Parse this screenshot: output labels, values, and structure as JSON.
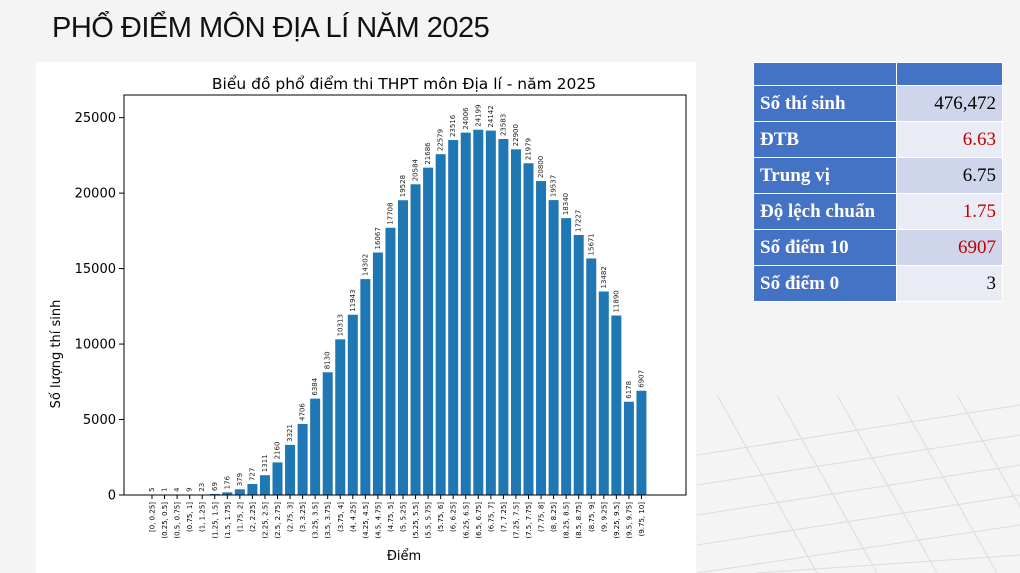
{
  "slide": {
    "title": "PHỔ ĐIỂM MÔN ĐỊA LÍ NĂM 2025"
  },
  "colors": {
    "bar": "#1f77b4",
    "table_header": "#4472c4",
    "highlight": "#c00000"
  },
  "chart_data": {
    "type": "bar",
    "title": "Biểu đồ phổ điểm thi THPT môn Địa lí - năm 2025",
    "xlabel": "Điểm",
    "ylabel": "Số lượng thí sinh",
    "ylim": [
      0,
      26500
    ],
    "yticks": [
      "0",
      "5000",
      "10000",
      "15000",
      "20000",
      "25000"
    ],
    "categories": [
      "[0, 0.25]",
      "(0.25, 0.5]",
      "(0.5, 0.75]",
      "(0.75, 1]",
      "(1, 1.25]",
      "(1.25, 1.5]",
      "(1.5, 1.75]",
      "(1.75, 2]",
      "(2, 2.25]",
      "(2.25, 2.5]",
      "(2.5, 2.75]",
      "(2.75, 3]",
      "(3, 3.25]",
      "(3.25, 3.5]",
      "(3.5, 3.75]",
      "(3.75, 4]",
      "(4, 4.25]",
      "(4.25, 4.5]",
      "(4.5, 4.75]",
      "(4.75, 5]",
      "(5, 5.25]",
      "(5.25, 5.5]",
      "(5.5, 5.75]",
      "(5.75, 6]",
      "(6, 6.25]",
      "(6.25, 6.5]",
      "(6.5, 6.75]",
      "(6.75, 7]",
      "(7, 7.25]",
      "(7.25, 7.5]",
      "(7.5, 7.75]",
      "(7.75, 8]",
      "(8, 8.25]",
      "(8.25, 8.5]",
      "(8.5, 8.75]",
      "(8.75, 9]",
      "(9, 9.25]",
      "(9.25, 9.5]",
      "(9.5, 9.75]",
      "(9.75, 10]"
    ],
    "values": [
      5,
      1,
      4,
      9,
      23,
      69,
      176,
      379,
      727,
      1311,
      2160,
      3321,
      4706,
      6384,
      8130,
      10313,
      11943,
      14302,
      16067,
      17708,
      19528,
      20584,
      21686,
      22579,
      23516,
      24006,
      24199,
      24142,
      23583,
      22900,
      21979,
      20800,
      19537,
      18340,
      17227,
      15671,
      13482,
      11890,
      6178,
      6907
    ],
    "grid": false,
    "legend": "none"
  },
  "stats_table": {
    "rows": [
      {
        "label": "Số thí sinh",
        "value": "476,472",
        "highlight": false
      },
      {
        "label": "ĐTB",
        "value": "6.63",
        "highlight": true
      },
      {
        "label": "Trung vị",
        "value": "6.75",
        "highlight": false
      },
      {
        "label": "Độ lệch chuẩn",
        "value": "1.75",
        "highlight": true
      },
      {
        "label": "Số điểm 10",
        "value": "6907",
        "highlight": true
      },
      {
        "label": "Số điểm 0",
        "value": "3",
        "highlight": false
      }
    ]
  }
}
